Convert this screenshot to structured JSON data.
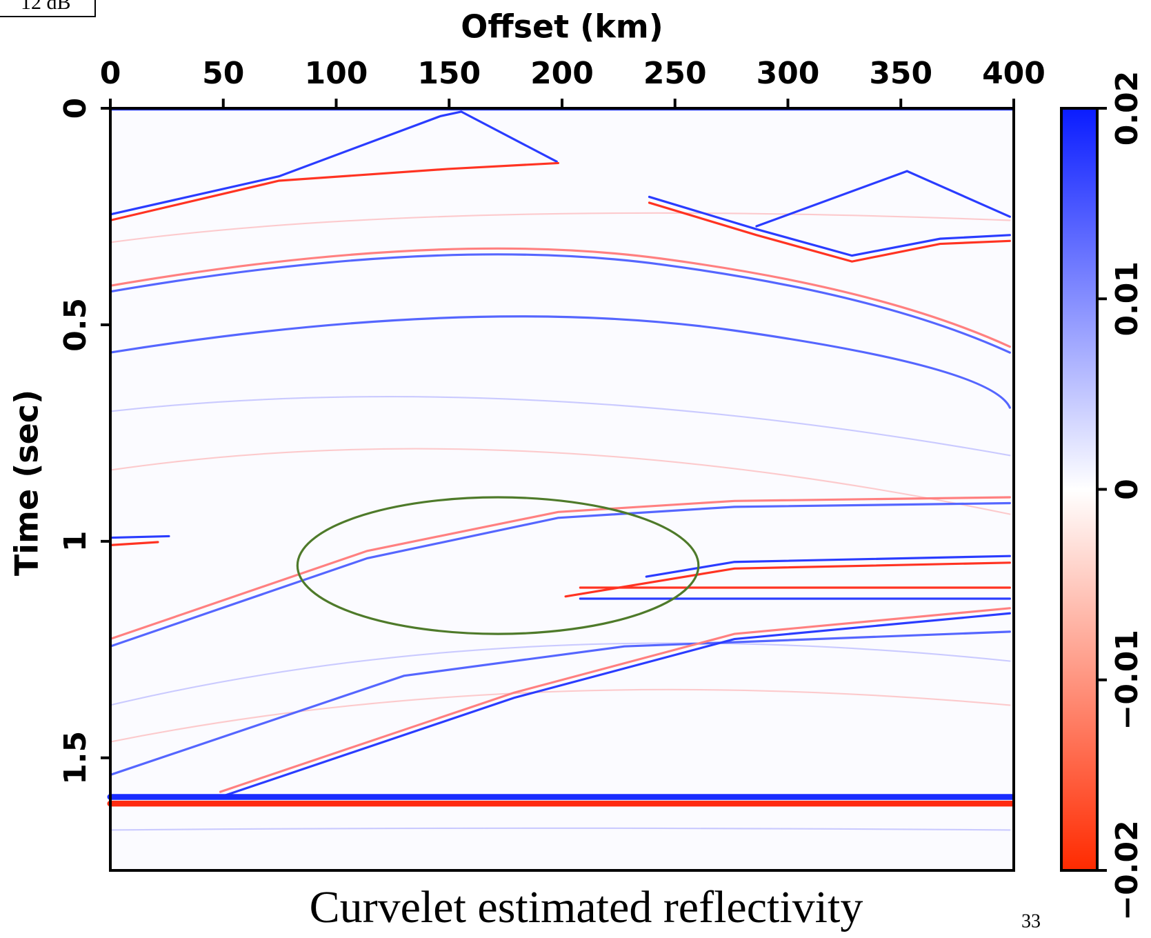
{
  "chart_data": {
    "type": "image",
    "title": "Curvelet estimated reflectivity",
    "x_label": "Offset (km)",
    "y_label": "Time (sec)",
    "xlim": [
      0,
      400
    ],
    "xticks": [
      0,
      50,
      100,
      150,
      200,
      250,
      300,
      350,
      400
    ],
    "ylim": [
      0,
      1.76
    ],
    "yticks": [
      0,
      0.5,
      1,
      1.5
    ],
    "colorbar": {
      "lim": [
        -0.02,
        0.02
      ],
      "ticks": [
        {
          "value": 0.02,
          "label": "0.02"
        },
        {
          "value": 0.01,
          "label": "0.01"
        },
        0,
        {
          "value": -0.01,
          "label": "−0.01"
        },
        {
          "value": -0.02,
          "label": "−0.02"
        }
      ],
      "colors": [
        "#ff2a00",
        "#ffffff",
        "#0a1cff"
      ]
    },
    "gain_label": "12 dB",
    "page_number": "33"
  }
}
